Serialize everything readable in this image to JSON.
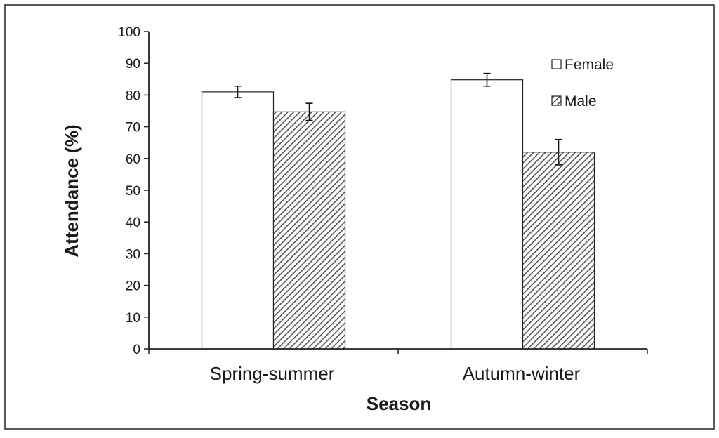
{
  "chart_data": {
    "type": "bar",
    "title": "",
    "xlabel": "Season",
    "ylabel": "Attendance (%)",
    "ylim": [
      0,
      100
    ],
    "yticks": [
      0,
      10,
      20,
      30,
      40,
      50,
      60,
      70,
      80,
      90,
      100
    ],
    "categories": [
      "Spring-summer",
      "Autumn-winter"
    ],
    "series": [
      {
        "name": "Female",
        "values": [
          81,
          84.8
        ],
        "errors": [
          1.8,
          2.0
        ],
        "fill": "#ffffff"
      },
      {
        "name": "Male",
        "values": [
          74.7,
          62
        ],
        "errors": [
          2.7,
          4.0
        ],
        "fill": "hatched"
      }
    ],
    "legend_position": "top-right",
    "grid": false
  }
}
